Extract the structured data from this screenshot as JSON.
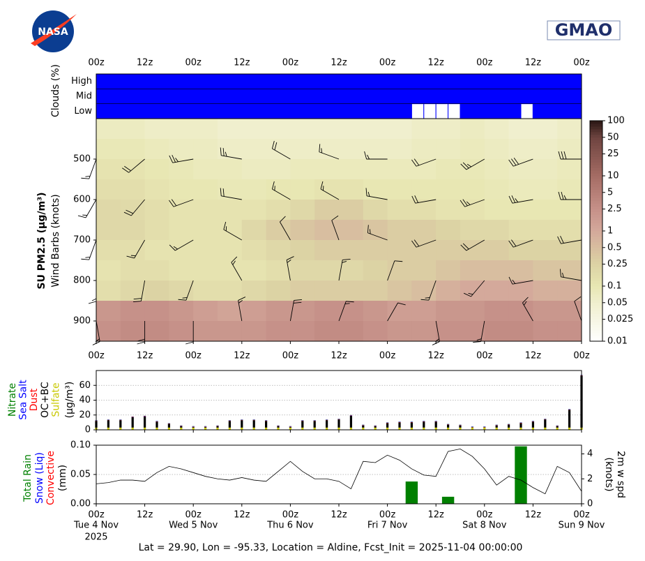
{
  "logos": {
    "nasa": "NASA",
    "gmao": "GMAO"
  },
  "time_axis": {
    "xlim": [
      0,
      120
    ],
    "xticks": [
      {
        "value": 0,
        "label": "00z"
      },
      {
        "value": 12,
        "label": "12z"
      },
      {
        "value": 24,
        "label": "00z"
      },
      {
        "value": 36,
        "label": "12z"
      },
      {
        "value": 48,
        "label": "00z"
      },
      {
        "value": 60,
        "label": "12z"
      },
      {
        "value": 72,
        "label": "00z"
      },
      {
        "value": 84,
        "label": "12z"
      },
      {
        "value": 96,
        "label": "00z"
      },
      {
        "value": 108,
        "label": "12z"
      },
      {
        "value": 120,
        "label": "00z"
      }
    ],
    "dates": [
      {
        "value": 0,
        "label": "Tue 4 Nov"
      },
      {
        "value": 24,
        "label": "Wed 5 Nov"
      },
      {
        "value": 48,
        "label": "Thu 6 Nov"
      },
      {
        "value": 72,
        "label": "Fri 7 Nov"
      },
      {
        "value": 96,
        "label": "Sat 8 Nov"
      },
      {
        "value": 120,
        "label": "Sun 9 Nov"
      }
    ],
    "year": "2025"
  },
  "chart_data": [
    {
      "type": "cloud",
      "ylabel": "Clouds (%)",
      "color": "#0000ff",
      "levels": [
        "High",
        "Mid",
        "Low"
      ],
      "x_bins": [
        0,
        3,
        6,
        9,
        12,
        15,
        18,
        21,
        24,
        27,
        30,
        33,
        36,
        39,
        42,
        45,
        48,
        51,
        54,
        57,
        60,
        63,
        66,
        69,
        72,
        75,
        78,
        81,
        84,
        87,
        90,
        93,
        96,
        99,
        102,
        105,
        108,
        111,
        114,
        117,
        120
      ],
      "values": [
        [
          100,
          100,
          100,
          100,
          100,
          100,
          100,
          100,
          100,
          100,
          100,
          100,
          100,
          100,
          100,
          100,
          100,
          100,
          100,
          100,
          100,
          100,
          100,
          100,
          100,
          100,
          100,
          100,
          100,
          100,
          100,
          100,
          100,
          100,
          100,
          100,
          100,
          100,
          100,
          100
        ],
        [
          100,
          100,
          100,
          100,
          100,
          100,
          100,
          100,
          100,
          100,
          100,
          100,
          100,
          100,
          100,
          100,
          100,
          100,
          100,
          100,
          100,
          100,
          100,
          100,
          100,
          100,
          100,
          100,
          100,
          100,
          100,
          100,
          100,
          100,
          100,
          100,
          100,
          100,
          100,
          100
        ],
        [
          100,
          100,
          100,
          100,
          100,
          100,
          100,
          100,
          100,
          100,
          100,
          100,
          100,
          100,
          100,
          100,
          100,
          100,
          100,
          100,
          100,
          100,
          100,
          100,
          100,
          100,
          0,
          0,
          0,
          0,
          100,
          100,
          100,
          100,
          100,
          0,
          100,
          100,
          100,
          100
        ]
      ]
    },
    {
      "type": "heatmap",
      "ylabel": "SU PM2.5 (μg/m³)",
      "ylabel2": "Wind Barbs (knots)",
      "ylim": [
        950,
        400
      ],
      "yticks": [
        500,
        600,
        700,
        800,
        900
      ],
      "x_bins": [
        0,
        6,
        12,
        18,
        24,
        30,
        36,
        42,
        48,
        54,
        60,
        66,
        72,
        78,
        84,
        90,
        96,
        102,
        108,
        114,
        120
      ],
      "y_bins": [
        400,
        450,
        500,
        550,
        600,
        650,
        700,
        750,
        800,
        850,
        900,
        950
      ],
      "z": [
        [
          0.07,
          0.07,
          0.06,
          0.06,
          0.06,
          0.05,
          0.05,
          0.05,
          0.05,
          0.05,
          0.05,
          0.05,
          0.05,
          0.06,
          0.06,
          0.07,
          0.06,
          0.05,
          0.05,
          0.06
        ],
        [
          0.09,
          0.09,
          0.08,
          0.07,
          0.07,
          0.06,
          0.06,
          0.06,
          0.06,
          0.06,
          0.06,
          0.06,
          0.06,
          0.07,
          0.07,
          0.08,
          0.07,
          0.06,
          0.06,
          0.07
        ],
        [
          0.12,
          0.12,
          0.1,
          0.09,
          0.08,
          0.08,
          0.07,
          0.07,
          0.08,
          0.08,
          0.08,
          0.08,
          0.08,
          0.08,
          0.09,
          0.09,
          0.08,
          0.07,
          0.07,
          0.08
        ],
        [
          0.15,
          0.15,
          0.12,
          0.1,
          0.1,
          0.09,
          0.09,
          0.1,
          0.1,
          0.12,
          0.12,
          0.1,
          0.1,
          0.1,
          0.1,
          0.1,
          0.09,
          0.08,
          0.08,
          0.09
        ],
        [
          0.2,
          0.18,
          0.15,
          0.12,
          0.12,
          0.12,
          0.12,
          0.15,
          0.2,
          0.3,
          0.3,
          0.2,
          0.15,
          0.15,
          0.12,
          0.12,
          0.1,
          0.1,
          0.1,
          0.1
        ],
        [
          0.2,
          0.2,
          0.15,
          0.12,
          0.12,
          0.12,
          0.2,
          0.3,
          0.4,
          0.5,
          0.5,
          0.4,
          0.3,
          0.3,
          0.25,
          0.2,
          0.2,
          0.15,
          0.15,
          0.15
        ],
        [
          0.15,
          0.15,
          0.12,
          0.12,
          0.12,
          0.12,
          0.15,
          0.2,
          0.25,
          0.3,
          0.3,
          0.3,
          0.3,
          0.3,
          0.3,
          0.3,
          0.3,
          0.25,
          0.25,
          0.25
        ],
        [
          0.12,
          0.15,
          0.15,
          0.12,
          0.12,
          0.12,
          0.12,
          0.15,
          0.2,
          0.2,
          0.2,
          0.25,
          0.3,
          0.3,
          0.4,
          0.5,
          0.5,
          0.5,
          0.4,
          0.4
        ],
        [
          0.15,
          0.2,
          0.25,
          0.2,
          0.15,
          0.15,
          0.2,
          0.25,
          0.3,
          0.3,
          0.3,
          0.3,
          0.4,
          0.5,
          0.8,
          1,
          1,
          1,
          0.8,
          0.8
        ],
        [
          2,
          2.5,
          2.5,
          2,
          1.5,
          1.2,
          1.5,
          2,
          2,
          2.5,
          2.5,
          2,
          1.5,
          1.5,
          2,
          2,
          2.5,
          2.5,
          2,
          2
        ],
        [
          2.5,
          3,
          3,
          2.5,
          2,
          2,
          2,
          2.5,
          2.5,
          3,
          3,
          2.5,
          2,
          2,
          2.5,
          2.5,
          3,
          3,
          2.5,
          2.5
        ]
      ],
      "colorbar": {
        "log": true,
        "range": [
          0.01,
          100
        ],
        "ticks": [
          0.01,
          0.025,
          0.05,
          0.1,
          0.25,
          0.5,
          1,
          2.5,
          5,
          10,
          25,
          50,
          100
        ]
      },
      "colormap": [
        [
          0.01,
          "#ffffff"
        ],
        [
          0.05,
          "#f0efce"
        ],
        [
          0.1,
          "#e8e7b3"
        ],
        [
          0.25,
          "#dcd3a4"
        ],
        [
          1,
          "#d4a99b"
        ],
        [
          2.5,
          "#c69189"
        ],
        [
          10,
          "#a56c64"
        ],
        [
          50,
          "#6e4440"
        ],
        [
          100,
          "#2a1714"
        ]
      ],
      "barbs": {
        "x": [
          0,
          12,
          24,
          36,
          48,
          60,
          72,
          84,
          96,
          108,
          120
        ],
        "levels": [
          500,
          600,
          700,
          800,
          900
        ],
        "direction": [
          [
            200,
            230,
            260,
            280,
            300,
            290,
            270,
            250,
            240,
            250,
            270
          ],
          [
            210,
            220,
            250,
            280,
            300,
            300,
            280,
            260,
            250,
            260,
            270
          ],
          [
            200,
            210,
            240,
            300,
            330,
            340,
            290,
            250,
            240,
            250,
            260
          ],
          [
            180,
            190,
            200,
            330,
            350,
            10,
            20,
            200,
            220,
            260,
            280
          ],
          [
            170,
            180,
            180,
            350,
            10,
            20,
            30,
            170,
            190,
            330,
            340
          ]
        ],
        "speed": [
          [
            15,
            20,
            25,
            25,
            20,
            15,
            15,
            20,
            25,
            30,
            30
          ],
          [
            15,
            20,
            20,
            20,
            15,
            15,
            15,
            20,
            25,
            25,
            25
          ],
          [
            15,
            15,
            15,
            15,
            10,
            10,
            15,
            20,
            20,
            20,
            20
          ],
          [
            15,
            20,
            15,
            15,
            15,
            15,
            10,
            15,
            15,
            15,
            15
          ],
          [
            15,
            20,
            10,
            15,
            20,
            15,
            10,
            15,
            15,
            15,
            10
          ]
        ]
      }
    },
    {
      "type": "stacked_bar",
      "ylabel": "(μg/m³)",
      "ylim": [
        0,
        80
      ],
      "yticks": [
        0,
        20,
        40,
        60
      ],
      "grid": true,
      "x": [
        0,
        3,
        6,
        9,
        12,
        15,
        18,
        21,
        24,
        27,
        30,
        33,
        36,
        39,
        42,
        45,
        48,
        51,
        54,
        57,
        60,
        63,
        66,
        69,
        72,
        75,
        78,
        81,
        84,
        87,
        90,
        93,
        96,
        99,
        102,
        105,
        108,
        111,
        114,
        117,
        120
      ],
      "series": [
        {
          "name": "Sulfate",
          "color": "#c8c800",
          "values": [
            3,
            3,
            3,
            3,
            3,
            3,
            3,
            3,
            3,
            3,
            3,
            3,
            3,
            3,
            3,
            3,
            3,
            3,
            3,
            3,
            3,
            3,
            3,
            3,
            3,
            3,
            3,
            3,
            3,
            3,
            3,
            3,
            3,
            3,
            3,
            3,
            3,
            3,
            3,
            3,
            3
          ]
        },
        {
          "name": "OC+BC",
          "color": "#000000",
          "values": [
            9,
            10,
            10,
            14,
            15,
            8,
            5,
            2,
            1,
            1,
            2,
            9,
            10,
            10,
            9,
            2,
            1,
            9,
            9,
            10,
            11,
            16,
            3,
            2,
            6,
            7,
            7,
            8,
            8,
            4,
            3,
            0.5,
            0.5,
            3,
            4,
            6,
            8,
            11,
            2,
            24,
            70
          ]
        },
        {
          "name": "Dust",
          "color": "#ff0000",
          "values": [
            0.4,
            0.4,
            0.4,
            0.4,
            0.4,
            0.4,
            0.4,
            0.4,
            0.4,
            0.4,
            0.4,
            0.4,
            0.4,
            0.4,
            0.4,
            0.4,
            0.4,
            0.4,
            0.4,
            0.4,
            0.4,
            0.4,
            0.4,
            0.4,
            0.4,
            0.4,
            0.4,
            0.4,
            0.4,
            0.4,
            0.4,
            0.4,
            0.4,
            0.4,
            0.4,
            0.4,
            0.4,
            0.4,
            0.4,
            0.4,
            0.4
          ]
        },
        {
          "name": "Sea Salt",
          "color": "#0000ff",
          "values": [
            0.4,
            0.4,
            0.4,
            0.4,
            0.4,
            0.4,
            0.4,
            0.4,
            0.4,
            0.4,
            0.4,
            0.4,
            0.4,
            0.4,
            0.4,
            0.4,
            0.4,
            0.4,
            0.4,
            0.4,
            0.4,
            0.4,
            0.4,
            0.4,
            0.4,
            0.4,
            0.4,
            0.4,
            0.4,
            0.4,
            0.4,
            0.4,
            0.4,
            0.4,
            0.4,
            0.4,
            0.4,
            0.4,
            0.4,
            0.4,
            0.4
          ]
        },
        {
          "name": "Nitrate",
          "color": "#008000",
          "values": [
            0.2,
            0.2,
            0.2,
            0.2,
            0.2,
            0.2,
            0.2,
            0.2,
            0.2,
            0.2,
            0.2,
            0.2,
            0.2,
            0.2,
            0.2,
            0.2,
            0.2,
            0.2,
            0.2,
            0.2,
            0.2,
            0.2,
            0.2,
            0.2,
            0.2,
            0.2,
            0.2,
            0.2,
            0.2,
            0.2,
            0.2,
            0.2,
            0.2,
            0.2,
            0.2,
            0.2,
            0.2,
            0.2,
            0.2,
            0.2,
            0.2
          ]
        }
      ]
    },
    {
      "type": "bar_line",
      "ylabel": "(mm)",
      "ylim": [
        0,
        0.1
      ],
      "yticks": [
        {
          "value": 0,
          "label": "0.00"
        },
        {
          "value": 0.05,
          "label": "0.05"
        },
        {
          "value": 0.1,
          "label": "0.10"
        }
      ],
      "grid": true,
      "bar_width": 3,
      "y2lim": [
        0,
        4.7
      ],
      "y2ticks": [
        0,
        2,
        4
      ],
      "y2label": "(knots)",
      "series": [
        {
          "name": "Total Rain",
          "color": "#008000",
          "x": [
            78,
            87,
            105
          ],
          "values": [
            0.038,
            0.012,
            0.098
          ]
        },
        {
          "name": "Snow (Liq)",
          "color": "#0000ff",
          "x": [
            78,
            87,
            105
          ],
          "values": [
            0,
            0,
            0
          ]
        },
        {
          "name": "Convective",
          "color": "#ff0000",
          "x": [
            78,
            87,
            105
          ],
          "values": [
            0,
            0,
            0
          ]
        },
        {
          "name": "2m w spd",
          "color": "#000000",
          "axis": "y2",
          "x": [
            0,
            3,
            6,
            9,
            12,
            15,
            18,
            21,
            24,
            27,
            30,
            33,
            36,
            39,
            42,
            45,
            48,
            51,
            54,
            57,
            60,
            63,
            66,
            69,
            72,
            75,
            78,
            81,
            84,
            87,
            90,
            93,
            96,
            99,
            102,
            105,
            108,
            111,
            114,
            117,
            120
          ],
          "values": [
            1.6,
            1.7,
            1.9,
            1.9,
            1.8,
            2.5,
            3.0,
            2.8,
            2.5,
            2.2,
            2.0,
            1.9,
            2.1,
            1.9,
            1.8,
            2.6,
            3.4,
            2.6,
            2.0,
            2.0,
            1.8,
            1.2,
            3.4,
            3.3,
            3.9,
            3.5,
            2.8,
            2.3,
            2.2,
            4.2,
            4.4,
            3.8,
            2.8,
            1.5,
            2.2,
            1.9,
            1.3,
            0.8,
            3.0,
            2.5,
            1.0
          ]
        }
      ]
    }
  ],
  "footer": "Lat = 29.90, Lon = -95.33, Location = Aldine, Fcst_Init = 2025-11-04 00:00:00"
}
